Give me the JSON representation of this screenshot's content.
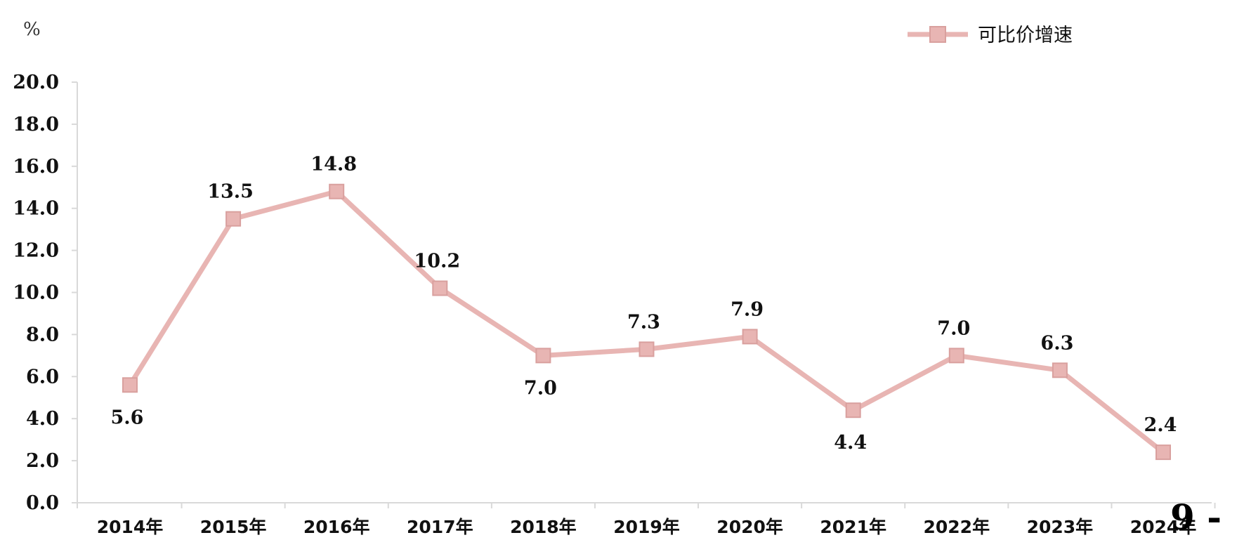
{
  "chart_data": {
    "type": "line",
    "unit_label": "%",
    "categories": [
      "2014年",
      "2015年",
      "2016年",
      "2017年",
      "2018年",
      "2019年",
      "2020年",
      "2021年",
      "2022年",
      "2023年",
      "2024年"
    ],
    "series": [
      {
        "name": "可比价增速",
        "values": [
          5.6,
          13.5,
          14.8,
          10.2,
          7.0,
          7.3,
          7.9,
          4.4,
          7.0,
          6.3,
          2.4
        ],
        "data_labels": [
          "5.6",
          "13.5",
          "14.8",
          "10.2",
          "7.0",
          "7.3",
          "7.9",
          "4.4",
          "7.0",
          "6.3",
          "2.4"
        ],
        "label_positions": [
          "below",
          "above",
          "above",
          "above",
          "below",
          "above",
          "above",
          "below",
          "above",
          "above",
          "above"
        ],
        "color": "#e8b5b3",
        "marker": "square"
      }
    ],
    "ylim": [
      0,
      20
    ],
    "yticks": [
      "0.0",
      "2.0",
      "4.0",
      "6.0",
      "8.0",
      "10.0",
      "12.0",
      "14.0",
      "16.0",
      "18.0",
      "20.0"
    ],
    "grid": false,
    "legend_position": "top-right"
  },
  "page": {
    "page_number_text": "9 -"
  }
}
